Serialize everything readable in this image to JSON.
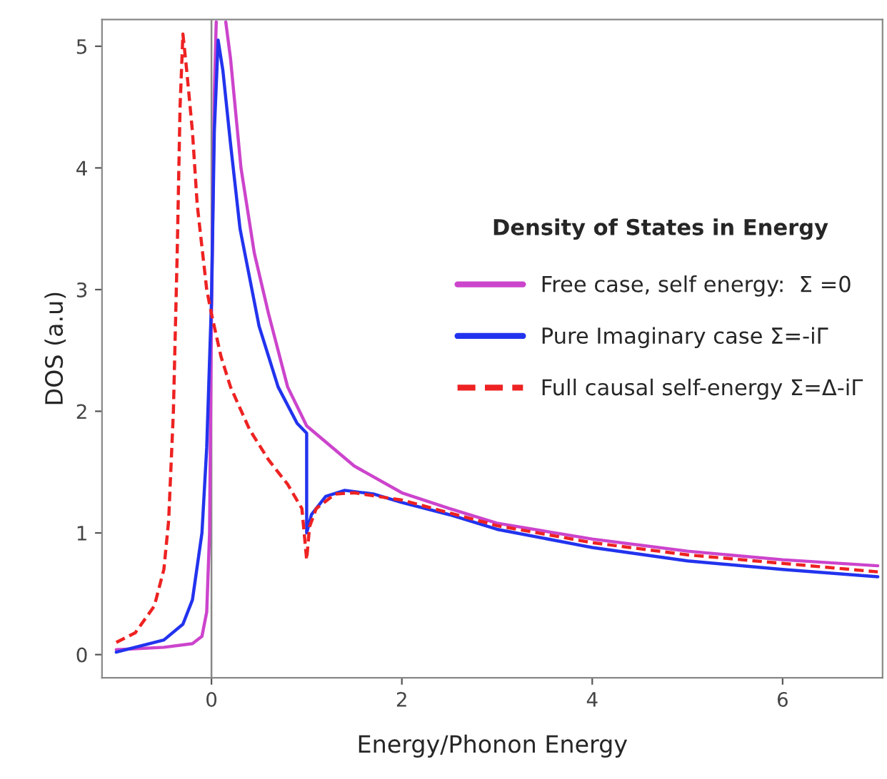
{
  "chart_data": {
    "type": "line",
    "xlabel": "Energy/Phonon Energy",
    "ylabel": "DOS (a.u)",
    "legend_title": "Density of States in Energy",
    "xlim": [
      -1.15,
      7.05
    ],
    "ylim": [
      -0.19,
      5.22
    ],
    "xticks": [
      0,
      2,
      4,
      6
    ],
    "yticks": [
      0,
      1,
      2,
      3,
      4,
      5
    ],
    "grid": false,
    "legend": "right",
    "marker": "none",
    "ref_lines": [
      {
        "axis": "x",
        "value": 0,
        "color": "#888888"
      }
    ],
    "series": [
      {
        "name": "Free case, self energy:  Σ =0",
        "color": "#cc44cc",
        "line_style": "solid",
        "x": [
          -1,
          -0.5,
          -0.2,
          -0.1,
          -0.05,
          -0.02,
          0,
          0.03,
          0.05,
          null,
          0.15,
          0.2,
          0.31,
          0.45,
          0.6,
          0.8,
          1.0,
          1.5,
          2,
          2.5,
          3,
          4,
          5,
          6,
          7
        ],
        "values": [
          0.04,
          0.06,
          0.09,
          0.15,
          0.35,
          1.0,
          2.8,
          4.6,
          5.2,
          null,
          5.2,
          4.9,
          4.0,
          3.3,
          2.8,
          2.2,
          1.88,
          1.55,
          1.33,
          1.2,
          1.08,
          0.95,
          0.85,
          0.78,
          0.73
        ]
      },
      {
        "name": "Pure Imaginary case Σ=-iΓ",
        "color": "#2233ee",
        "line_style": "solid",
        "x": [
          -1,
          -0.5,
          -0.3,
          -0.2,
          -0.1,
          -0.05,
          0,
          0.03,
          0.07,
          0.12,
          0.2,
          0.3,
          0.5,
          0.7,
          0.9,
          1.0,
          1.0,
          1.05,
          1.2,
          1.4,
          1.7,
          2,
          2.5,
          3,
          4,
          5,
          6,
          7
        ],
        "values": [
          0.02,
          0.12,
          0.25,
          0.45,
          1.0,
          1.7,
          2.9,
          4.3,
          5.05,
          4.8,
          4.2,
          3.5,
          2.7,
          2.2,
          1.9,
          1.82,
          1.0,
          1.15,
          1.3,
          1.35,
          1.32,
          1.25,
          1.15,
          1.03,
          0.88,
          0.77,
          0.7,
          0.64
        ]
      },
      {
        "name": "Full causal self-energy Σ=Δ-iΓ",
        "color": "#ee2222",
        "line_style": "dashed",
        "x": [
          -1,
          -0.8,
          -0.6,
          -0.5,
          -0.45,
          -0.4,
          -0.36,
          -0.33,
          -0.3,
          -0.26,
          -0.2,
          -0.15,
          -0.05,
          0,
          0.1,
          0.2,
          0.4,
          0.6,
          0.8,
          0.95,
          1.0,
          1.03,
          1.1,
          1.3,
          1.5,
          2,
          3,
          4,
          5,
          6,
          7
        ],
        "values": [
          0.1,
          0.18,
          0.4,
          0.7,
          1.1,
          2.0,
          3.3,
          4.5,
          5.1,
          4.8,
          4.3,
          3.7,
          3.0,
          2.8,
          2.45,
          2.2,
          1.85,
          1.6,
          1.4,
          1.2,
          0.78,
          1.05,
          1.2,
          1.32,
          1.33,
          1.27,
          1.06,
          0.92,
          0.82,
          0.75,
          0.68
        ]
      }
    ]
  }
}
